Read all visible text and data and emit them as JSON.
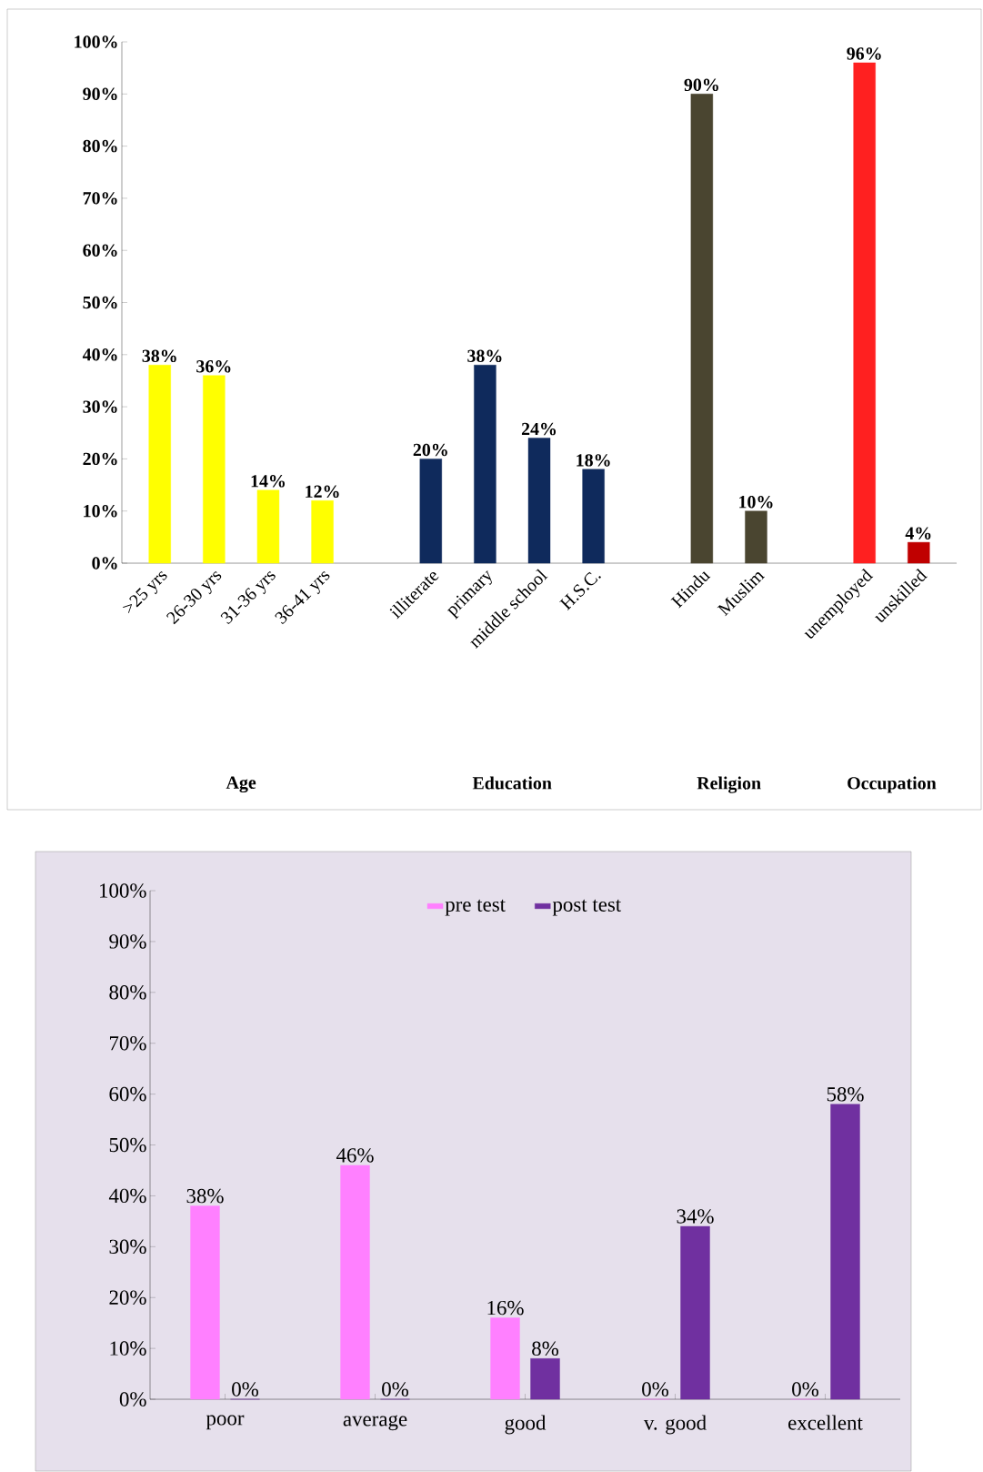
{
  "chart_data": [
    {
      "type": "bar",
      "categories": [
        ">25 yrs",
        "26-30 yrs",
        "31-36 yrs",
        "36-41 yrs",
        null,
        "illiterate",
        "primary",
        "middle school",
        "H.S.C.",
        null,
        "Hindu",
        "Muslim",
        null,
        "unemployed",
        "unskilled"
      ],
      "values": [
        38,
        36,
        14,
        12,
        null,
        20,
        38,
        24,
        18,
        null,
        90,
        10,
        null,
        96,
        4
      ],
      "colors": [
        "#ffff00",
        "#ffff00",
        "#ffff00",
        "#ffff00",
        null,
        "#0f2a5c",
        "#0f2a5c",
        "#0f2a5c",
        "#0f2a5c",
        null,
        "#4a4530",
        "#4a4530",
        null,
        "#ff2020",
        "#c00000"
      ],
      "value_labels": [
        "38%",
        "36%",
        "14%",
        "12%",
        null,
        "20%",
        "38%",
        "24%",
        "18%",
        null,
        "90%",
        "10%",
        null,
        "96%",
        "4%"
      ],
      "ylim": [
        0,
        100
      ],
      "yticks": [
        {
          "value": 0,
          "label": "0%"
        },
        {
          "value": 10,
          "label": "10%"
        },
        {
          "value": 20,
          "label": "20%"
        },
        {
          "value": 30,
          "label": "30%"
        },
        {
          "value": 40,
          "label": "40%"
        },
        {
          "value": 50,
          "label": "50%"
        },
        {
          "value": 60,
          "label": "60%"
        },
        {
          "value": 70,
          "label": "70%"
        },
        {
          "value": 80,
          "label": "80%"
        },
        {
          "value": 90,
          "label": "90%"
        },
        {
          "value": 100,
          "label": "100%"
        }
      ],
      "annotations": [
        "Age",
        "Education",
        "Religion",
        "Occupation"
      ]
    },
    {
      "type": "bar",
      "categories": [
        "poor",
        "average",
        "good",
        "v. good",
        "excellent"
      ],
      "series": [
        {
          "name": "pre test",
          "color": "#ff80ff",
          "values": [
            38,
            46,
            16,
            0,
            0
          ],
          "value_labels": [
            "38%",
            "46%",
            "16%",
            "0%",
            "0%"
          ]
        },
        {
          "name": "post test",
          "color": "#7030a0",
          "values": [
            0,
            0,
            8,
            34,
            58
          ],
          "value_labels": [
            "0%",
            "0%",
            "8%",
            "34%",
            "58%"
          ]
        }
      ],
      "ylim": [
        0,
        100
      ],
      "yticks": [
        {
          "value": 0,
          "label": "0%"
        },
        {
          "value": 10,
          "label": "10%"
        },
        {
          "value": 20,
          "label": "20%"
        },
        {
          "value": 30,
          "label": "30%"
        },
        {
          "value": 40,
          "label": "40%"
        },
        {
          "value": 50,
          "label": "50%"
        },
        {
          "value": 60,
          "label": "60%"
        },
        {
          "value": 70,
          "label": "70%"
        },
        {
          "value": 80,
          "label": "80%"
        },
        {
          "value": 90,
          "label": "90%"
        },
        {
          "value": 100,
          "label": "100%"
        }
      ],
      "legend": "top"
    }
  ]
}
